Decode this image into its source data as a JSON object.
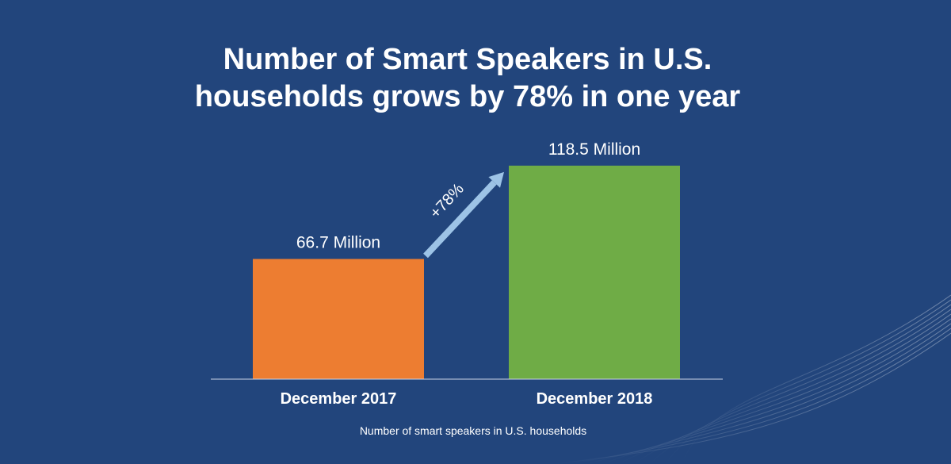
{
  "chart_data": {
    "type": "bar",
    "title": "Number of Smart Speakers in U.S. households grows by 78% in one year",
    "title_lines": [
      "Number of Smart Speakers in U.S.",
      "households grows by 78% in one year"
    ],
    "categories": [
      "December 2017",
      "December 2018"
    ],
    "values": [
      66.7,
      118.5
    ],
    "unit": "Million",
    "data_labels": [
      "66.7 Million",
      "118.5 Million"
    ],
    "bar_colors": [
      "#ed7d31",
      "#6fac46"
    ],
    "xlabel": "Number of smart speakers in U.S. households",
    "ylabel": "",
    "ylim": [
      0,
      140
    ],
    "grid": false,
    "annotations": [
      {
        "text": "+78%",
        "type": "arrow",
        "from": "December 2017",
        "to": "December 2018",
        "color": "#9dc3e6"
      }
    ]
  },
  "colors": {
    "background": "#22457c",
    "text": "#ffffff",
    "axis": "#c9d4e6",
    "arrow": "#9dc3e6"
  }
}
